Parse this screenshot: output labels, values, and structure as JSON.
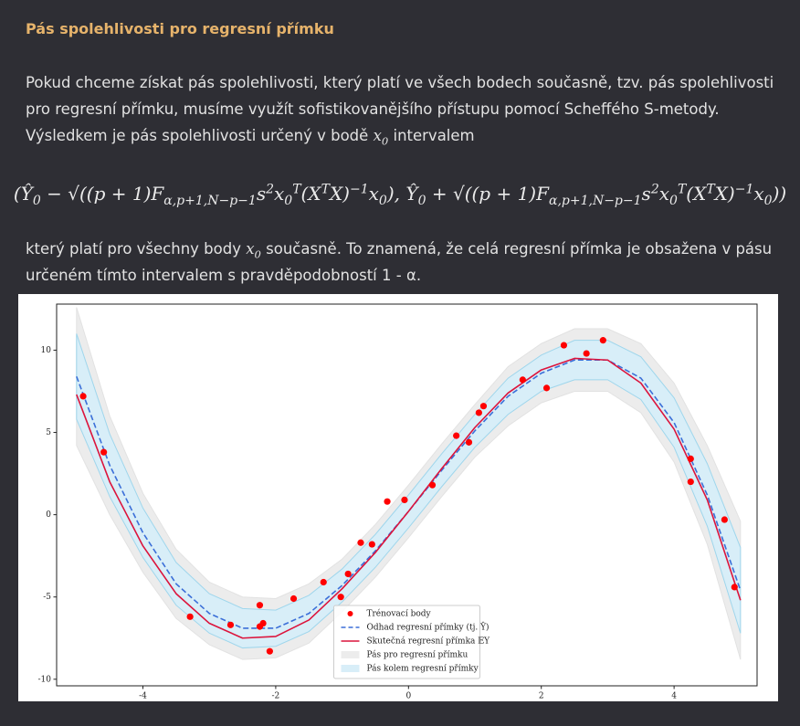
{
  "heading": "Pás spolehlivosti pro regresní přímku",
  "paragraph1": [
    "Pokud chceme získat pás spolehlivosti, který platí ve všech bodech současně, tzv. pás spolehlivosti pro regresní přímku, musíme využít sofistikovanějšího přístupu pomocí Scheffého S-metody. Výsledkem je pás spolehlivosti určený v bodě ",
    "x",
    "0",
    " intervalem"
  ],
  "formula": [
    "(",
    "Ŷ",
    "0",
    " − √((p + 1)F",
    "α,p+1,N−p−1",
    "s",
    "2",
    "x",
    "0",
    "T",
    "(X",
    "T",
    "X)",
    "−1",
    "x",
    "0",
    "), Ŷ",
    "0",
    " + √((p + 1)F",
    "α,p+1,N−p−1",
    "s",
    "2",
    "x",
    "0",
    "T",
    "(X",
    "T",
    "X)",
    "−1",
    "x",
    "0",
    "))"
  ],
  "paragraph2": [
    "který platí pro všechny body ",
    "x",
    "0",
    " současně. To znamená, že celá regresní přímka je obsažena v pásu určeném tímto intervalem s pravděpodobností 1 - α."
  ],
  "chart_data": {
    "type": "line",
    "xlim": [
      -5.3,
      5.25
    ],
    "ylim": [
      -10.4,
      12.8
    ],
    "xticks": [
      -4,
      -2,
      0,
      2,
      4
    ],
    "yticks": [
      -10,
      -5,
      0,
      5,
      10
    ],
    "grid": false,
    "legend": "lower center",
    "x": [
      -5,
      -4.5,
      -4,
      -3.5,
      -3,
      -2.5,
      -2,
      -1.5,
      -1,
      -0.5,
      0,
      0.5,
      1,
      1.5,
      2,
      2.5,
      3,
      3.5,
      4,
      4.5,
      5
    ],
    "series": [
      {
        "name": "Trénovací body",
        "type": "scatter",
        "color": "#ff0000",
        "x": [
          -4.9,
          -4.59,
          -3.29,
          -2.68,
          -2.24,
          -2.24,
          -2.19,
          -2.09,
          -1.73,
          -1.28,
          -1.02,
          -0.91,
          -0.72,
          -0.55,
          -0.32,
          -0.06,
          0.36,
          0.72,
          0.91,
          1.06,
          1.13,
          1.72,
          2.08,
          2.34,
          2.68,
          2.93,
          4.25,
          4.25,
          4.76,
          4.91
        ],
        "values": [
          7.2,
          3.8,
          -6.2,
          -6.7,
          -5.5,
          -6.8,
          -6.6,
          -8.3,
          -5.1,
          -4.1,
          -5.0,
          -3.6,
          -1.7,
          -1.8,
          0.8,
          0.9,
          1.8,
          4.8,
          4.4,
          6.2,
          6.6,
          8.2,
          7.7,
          10.3,
          9.8,
          10.6,
          3.4,
          2.0,
          -0.3,
          -4.4
        ]
      },
      {
        "name": "Odhad regresní přímky (tj. Ŷ)",
        "type": "line",
        "dashed": true,
        "color": "#3b6fd8",
        "values": [
          8.4,
          3.0,
          -1.1,
          -4.2,
          -6.0,
          -6.9,
          -6.9,
          -6.0,
          -4.3,
          -2.2,
          0.2,
          2.7,
          5.1,
          7.2,
          8.6,
          9.4,
          9.4,
          8.3,
          5.6,
          1.2,
          -4.6
        ]
      },
      {
        "name": "Skutečná regresní přímka 𝔼Y",
        "type": "line",
        "dashed": false,
        "color": "#dc143c",
        "values": [
          7.3,
          2.0,
          -1.9,
          -4.8,
          -6.6,
          -7.5,
          -7.4,
          -6.4,
          -4.5,
          -2.3,
          0.2,
          2.8,
          5.3,
          7.4,
          8.8,
          9.5,
          9.4,
          8.0,
          5.2,
          0.9,
          -5.2
        ]
      },
      {
        "name": "Pás pro regresní přímku",
        "type": "band",
        "color": "#ececec",
        "lower": [
          4.2,
          0.0,
          -3.5,
          -6.3,
          -7.9,
          -8.8,
          -8.7,
          -7.8,
          -5.9,
          -3.8,
          -1.4,
          1.1,
          3.5,
          5.4,
          6.8,
          7.5,
          7.5,
          6.2,
          3.2,
          -1.8,
          -8.8
        ],
        "upper": [
          12.6,
          6.0,
          1.3,
          -2.1,
          -4.1,
          -5.0,
          -5.1,
          -4.2,
          -2.7,
          -0.6,
          1.8,
          4.3,
          6.7,
          9.0,
          10.4,
          11.3,
          11.3,
          10.4,
          8.0,
          4.2,
          -0.4
        ]
      },
      {
        "name": "Pás kolem regresní přímky",
        "type": "band",
        "color": "#d8eef8",
        "lower": [
          5.8,
          1.1,
          -2.6,
          -5.5,
          -7.2,
          -8.1,
          -8.0,
          -7.1,
          -5.3,
          -3.2,
          -0.8,
          1.7,
          4.1,
          6.1,
          7.5,
          8.2,
          8.2,
          7.0,
          4.1,
          -0.7,
          -7.2
        ],
        "upper": [
          11.0,
          4.9,
          0.4,
          -2.9,
          -4.8,
          -5.7,
          -5.8,
          -4.9,
          -3.3,
          -1.2,
          1.2,
          3.7,
          6.1,
          8.3,
          9.7,
          10.6,
          10.6,
          9.6,
          7.1,
          3.1,
          -2.0
        ]
      }
    ]
  }
}
